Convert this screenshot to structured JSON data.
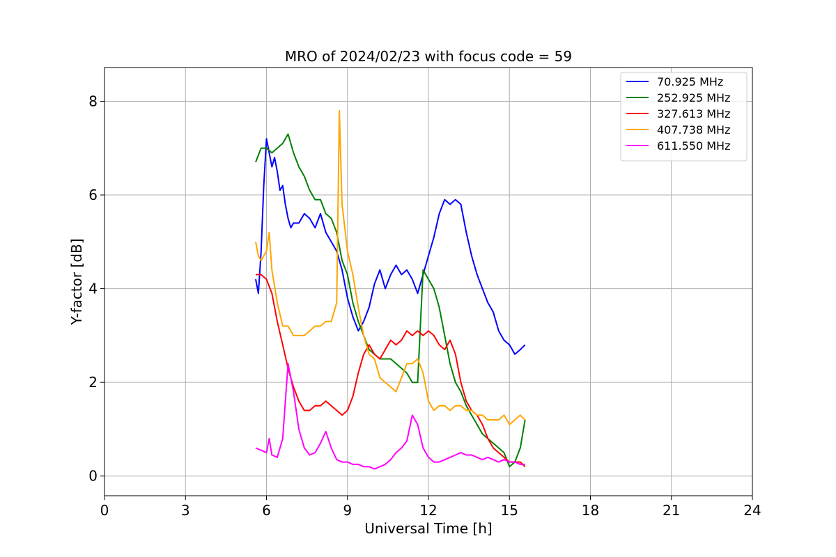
{
  "chart_data": {
    "type": "line",
    "title": "MRO of 2024/02/23 with focus code = 59",
    "xlabel": "Universal Time [h]",
    "ylabel": "Y-factor [dB]",
    "xlim": [
      0,
      24
    ],
    "ylim": [
      -0.42,
      8.72
    ],
    "xticks": [
      0,
      3,
      6,
      9,
      12,
      15,
      18,
      21,
      24
    ],
    "yticks": [
      0,
      2,
      4,
      6,
      8
    ],
    "grid": true,
    "legend_position": "top-right",
    "series": [
      {
        "name": " 70.925 MHz",
        "color": "#0000ff",
        "points": [
          [
            5.6,
            4.2
          ],
          [
            5.7,
            3.9
          ],
          [
            5.8,
            4.8
          ],
          [
            5.9,
            6.2
          ],
          [
            6.0,
            7.2
          ],
          [
            6.1,
            6.9
          ],
          [
            6.2,
            6.6
          ],
          [
            6.3,
            6.8
          ],
          [
            6.4,
            6.5
          ],
          [
            6.5,
            6.1
          ],
          [
            6.6,
            6.2
          ],
          [
            6.7,
            5.8
          ],
          [
            6.8,
            5.5
          ],
          [
            6.9,
            5.3
          ],
          [
            7.0,
            5.4
          ],
          [
            7.2,
            5.4
          ],
          [
            7.4,
            5.6
          ],
          [
            7.6,
            5.5
          ],
          [
            7.8,
            5.3
          ],
          [
            8.0,
            5.6
          ],
          [
            8.2,
            5.2
          ],
          [
            8.4,
            5.0
          ],
          [
            8.6,
            4.8
          ],
          [
            8.8,
            4.4
          ],
          [
            9.0,
            3.8
          ],
          [
            9.2,
            3.4
          ],
          [
            9.4,
            3.1
          ],
          [
            9.6,
            3.3
          ],
          [
            9.8,
            3.6
          ],
          [
            10.0,
            4.1
          ],
          [
            10.2,
            4.4
          ],
          [
            10.4,
            4.0
          ],
          [
            10.6,
            4.3
          ],
          [
            10.8,
            4.5
          ],
          [
            11.0,
            4.3
          ],
          [
            11.2,
            4.4
          ],
          [
            11.4,
            4.2
          ],
          [
            11.6,
            3.9
          ],
          [
            11.8,
            4.3
          ],
          [
            12.0,
            4.7
          ],
          [
            12.2,
            5.1
          ],
          [
            12.4,
            5.6
          ],
          [
            12.6,
            5.9
          ],
          [
            12.8,
            5.8
          ],
          [
            13.0,
            5.9
          ],
          [
            13.2,
            5.8
          ],
          [
            13.4,
            5.2
          ],
          [
            13.6,
            4.7
          ],
          [
            13.8,
            4.3
          ],
          [
            14.0,
            4.0
          ],
          [
            14.2,
            3.7
          ],
          [
            14.4,
            3.5
          ],
          [
            14.6,
            3.1
          ],
          [
            14.8,
            2.9
          ],
          [
            15.0,
            2.8
          ],
          [
            15.2,
            2.6
          ],
          [
            15.4,
            2.7
          ],
          [
            15.58,
            2.8
          ]
        ]
      },
      {
        "name": "252.925 MHz",
        "color": "#008000",
        "points": [
          [
            5.6,
            6.7
          ],
          [
            5.8,
            7.0
          ],
          [
            6.0,
            7.0
          ],
          [
            6.2,
            6.9
          ],
          [
            6.4,
            7.0
          ],
          [
            6.6,
            7.1
          ],
          [
            6.8,
            7.3
          ],
          [
            7.0,
            6.9
          ],
          [
            7.2,
            6.6
          ],
          [
            7.4,
            6.4
          ],
          [
            7.6,
            6.1
          ],
          [
            7.8,
            5.9
          ],
          [
            8.0,
            5.9
          ],
          [
            8.2,
            5.6
          ],
          [
            8.4,
            5.5
          ],
          [
            8.6,
            5.2
          ],
          [
            8.8,
            4.6
          ],
          [
            9.0,
            4.3
          ],
          [
            9.2,
            3.7
          ],
          [
            9.4,
            3.3
          ],
          [
            9.6,
            3.0
          ],
          [
            9.8,
            2.7
          ],
          [
            10.0,
            2.6
          ],
          [
            10.2,
            2.5
          ],
          [
            10.4,
            2.5
          ],
          [
            10.6,
            2.5
          ],
          [
            10.8,
            2.4
          ],
          [
            11.0,
            2.3
          ],
          [
            11.2,
            2.2
          ],
          [
            11.4,
            2.0
          ],
          [
            11.6,
            2.0
          ],
          [
            11.8,
            4.4
          ],
          [
            12.0,
            4.2
          ],
          [
            12.2,
            4.0
          ],
          [
            12.4,
            3.6
          ],
          [
            12.6,
            3.0
          ],
          [
            12.8,
            2.4
          ],
          [
            13.0,
            2.0
          ],
          [
            13.2,
            1.8
          ],
          [
            13.4,
            1.5
          ],
          [
            13.6,
            1.3
          ],
          [
            13.8,
            1.1
          ],
          [
            14.0,
            0.9
          ],
          [
            14.2,
            0.8
          ],
          [
            14.4,
            0.7
          ],
          [
            14.6,
            0.6
          ],
          [
            14.8,
            0.5
          ],
          [
            15.0,
            0.2
          ],
          [
            15.2,
            0.3
          ],
          [
            15.4,
            0.6
          ],
          [
            15.58,
            1.2
          ]
        ]
      },
      {
        "name": "327.613 MHz",
        "color": "#ff0000",
        "points": [
          [
            5.6,
            4.3
          ],
          [
            5.8,
            4.3
          ],
          [
            6.0,
            4.2
          ],
          [
            6.2,
            3.9
          ],
          [
            6.4,
            3.3
          ],
          [
            6.6,
            2.8
          ],
          [
            6.8,
            2.3
          ],
          [
            7.0,
            1.9
          ],
          [
            7.2,
            1.6
          ],
          [
            7.4,
            1.4
          ],
          [
            7.6,
            1.4
          ],
          [
            7.8,
            1.5
          ],
          [
            8.0,
            1.5
          ],
          [
            8.2,
            1.6
          ],
          [
            8.4,
            1.5
          ],
          [
            8.6,
            1.4
          ],
          [
            8.8,
            1.3
          ],
          [
            9.0,
            1.4
          ],
          [
            9.2,
            1.7
          ],
          [
            9.4,
            2.2
          ],
          [
            9.6,
            2.6
          ],
          [
            9.8,
            2.8
          ],
          [
            10.0,
            2.6
          ],
          [
            10.2,
            2.5
          ],
          [
            10.4,
            2.7
          ],
          [
            10.6,
            2.9
          ],
          [
            10.8,
            2.8
          ],
          [
            11.0,
            2.9
          ],
          [
            11.2,
            3.1
          ],
          [
            11.4,
            3.0
          ],
          [
            11.6,
            3.1
          ],
          [
            11.8,
            3.0
          ],
          [
            12.0,
            3.1
          ],
          [
            12.2,
            3.0
          ],
          [
            12.4,
            2.8
          ],
          [
            12.6,
            2.7
          ],
          [
            12.8,
            2.9
          ],
          [
            13.0,
            2.6
          ],
          [
            13.2,
            2.0
          ],
          [
            13.4,
            1.6
          ],
          [
            13.6,
            1.4
          ],
          [
            13.8,
            1.3
          ],
          [
            14.0,
            1.1
          ],
          [
            14.2,
            0.8
          ],
          [
            14.4,
            0.6
          ],
          [
            14.6,
            0.5
          ],
          [
            14.8,
            0.4
          ],
          [
            15.0,
            0.3
          ],
          [
            15.2,
            0.3
          ],
          [
            15.4,
            0.3
          ],
          [
            15.58,
            0.2
          ]
        ]
      },
      {
        "name": "407.738 MHz",
        "color": "#ffa500",
        "points": [
          [
            5.6,
            5.0
          ],
          [
            5.7,
            4.7
          ],
          [
            5.8,
            4.6
          ],
          [
            6.0,
            4.8
          ],
          [
            6.1,
            5.2
          ],
          [
            6.2,
            4.4
          ],
          [
            6.4,
            3.7
          ],
          [
            6.6,
            3.2
          ],
          [
            6.8,
            3.2
          ],
          [
            7.0,
            3.0
          ],
          [
            7.2,
            3.0
          ],
          [
            7.4,
            3.0
          ],
          [
            7.6,
            3.1
          ],
          [
            7.8,
            3.2
          ],
          [
            8.0,
            3.2
          ],
          [
            8.2,
            3.3
          ],
          [
            8.4,
            3.3
          ],
          [
            8.6,
            3.7
          ],
          [
            8.7,
            7.8
          ],
          [
            8.8,
            5.8
          ],
          [
            9.0,
            4.8
          ],
          [
            9.2,
            4.3
          ],
          [
            9.4,
            3.6
          ],
          [
            9.6,
            3.0
          ],
          [
            9.8,
            2.6
          ],
          [
            10.0,
            2.5
          ],
          [
            10.2,
            2.1
          ],
          [
            10.4,
            2.0
          ],
          [
            10.6,
            1.9
          ],
          [
            10.8,
            1.8
          ],
          [
            11.0,
            2.1
          ],
          [
            11.2,
            2.4
          ],
          [
            11.4,
            2.4
          ],
          [
            11.6,
            2.5
          ],
          [
            11.8,
            2.2
          ],
          [
            12.0,
            1.6
          ],
          [
            12.2,
            1.4
          ],
          [
            12.4,
            1.5
          ],
          [
            12.6,
            1.5
          ],
          [
            12.8,
            1.4
          ],
          [
            13.0,
            1.5
          ],
          [
            13.2,
            1.5
          ],
          [
            13.4,
            1.4
          ],
          [
            13.6,
            1.4
          ],
          [
            13.8,
            1.3
          ],
          [
            14.0,
            1.3
          ],
          [
            14.2,
            1.2
          ],
          [
            14.4,
            1.2
          ],
          [
            14.6,
            1.2
          ],
          [
            14.8,
            1.3
          ],
          [
            15.0,
            1.1
          ],
          [
            15.2,
            1.2
          ],
          [
            15.4,
            1.3
          ],
          [
            15.58,
            1.2
          ]
        ]
      },
      {
        "name": "611.550 MHz",
        "color": "#ff00ff",
        "points": [
          [
            5.6,
            0.6
          ],
          [
            5.8,
            0.55
          ],
          [
            6.0,
            0.5
          ],
          [
            6.1,
            0.8
          ],
          [
            6.2,
            0.45
          ],
          [
            6.4,
            0.4
          ],
          [
            6.6,
            0.8
          ],
          [
            6.8,
            2.4
          ],
          [
            7.0,
            1.8
          ],
          [
            7.2,
            1.0
          ],
          [
            7.4,
            0.6
          ],
          [
            7.6,
            0.45
          ],
          [
            7.8,
            0.5
          ],
          [
            8.0,
            0.7
          ],
          [
            8.2,
            0.95
          ],
          [
            8.4,
            0.6
          ],
          [
            8.6,
            0.35
          ],
          [
            8.8,
            0.3
          ],
          [
            9.0,
            0.3
          ],
          [
            9.2,
            0.25
          ],
          [
            9.4,
            0.25
          ],
          [
            9.6,
            0.2
          ],
          [
            9.8,
            0.2
          ],
          [
            10.0,
            0.15
          ],
          [
            10.2,
            0.2
          ],
          [
            10.4,
            0.25
          ],
          [
            10.6,
            0.35
          ],
          [
            10.8,
            0.5
          ],
          [
            11.0,
            0.6
          ],
          [
            11.2,
            0.75
          ],
          [
            11.4,
            1.3
          ],
          [
            11.6,
            1.1
          ],
          [
            11.8,
            0.6
          ],
          [
            12.0,
            0.4
          ],
          [
            12.2,
            0.3
          ],
          [
            12.4,
            0.3
          ],
          [
            12.6,
            0.35
          ],
          [
            12.8,
            0.4
          ],
          [
            13.0,
            0.45
          ],
          [
            13.2,
            0.5
          ],
          [
            13.4,
            0.45
          ],
          [
            13.6,
            0.45
          ],
          [
            13.8,
            0.4
          ],
          [
            14.0,
            0.35
          ],
          [
            14.2,
            0.4
          ],
          [
            14.4,
            0.35
          ],
          [
            14.6,
            0.3
          ],
          [
            14.8,
            0.35
          ],
          [
            15.0,
            0.3
          ],
          [
            15.2,
            0.3
          ],
          [
            15.4,
            0.25
          ],
          [
            15.58,
            0.25
          ]
        ]
      }
    ]
  }
}
